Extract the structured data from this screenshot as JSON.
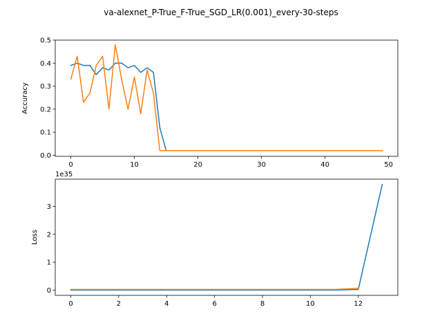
{
  "suptitle": "va-alexnet_P-True_F-True_SGD_LR(0.001)_every-30-steps",
  "chart_data": [
    {
      "type": "line",
      "ylabel": "Accuracy",
      "xlim": [
        -2.45,
        51.45
      ],
      "ylim": [
        -0.0049,
        0.5
      ],
      "xticks": [
        0,
        10,
        20,
        30,
        40,
        50
      ],
      "xtick_labels": [
        "0",
        "10",
        "20",
        "30",
        "40",
        "50"
      ],
      "yticks": [
        0.0,
        0.1,
        0.2,
        0.3,
        0.4,
        0.5
      ],
      "ytick_labels": [
        "0.0",
        "0.1",
        "0.2",
        "0.3",
        "0.4",
        "0.5"
      ],
      "series": [
        {
          "color": "#1f77b4",
          "x": [
            0,
            1,
            2,
            3,
            4,
            5,
            6,
            7,
            8,
            9,
            10,
            11,
            12,
            13,
            14,
            15
          ],
          "values": [
            0.39,
            0.4,
            0.39,
            0.39,
            0.35,
            0.38,
            0.37,
            0.4,
            0.4,
            0.38,
            0.39,
            0.36,
            0.38,
            0.36,
            0.12,
            0.02
          ]
        },
        {
          "color": "#ff7f0e",
          "x": [
            0,
            1,
            2,
            3,
            4,
            5,
            6,
            7,
            8,
            9,
            10,
            11,
            12,
            13,
            14,
            15,
            16,
            17,
            18,
            19,
            20,
            21,
            22,
            23,
            24,
            25,
            26,
            27,
            28,
            29,
            30,
            31,
            32,
            33,
            34,
            35,
            36,
            37,
            38,
            39,
            40,
            41,
            42,
            43,
            44,
            45,
            46,
            47,
            48,
            49
          ],
          "values": [
            0.33,
            0.43,
            0.23,
            0.27,
            0.39,
            0.43,
            0.2,
            0.48,
            0.33,
            0.2,
            0.34,
            0.18,
            0.37,
            0.27,
            0.02,
            0.02,
            0.02,
            0.02,
            0.02,
            0.02,
            0.02,
            0.02,
            0.02,
            0.02,
            0.02,
            0.02,
            0.02,
            0.02,
            0.02,
            0.02,
            0.02,
            0.02,
            0.02,
            0.02,
            0.02,
            0.02,
            0.02,
            0.02,
            0.02,
            0.02,
            0.02,
            0.02,
            0.02,
            0.02,
            0.02,
            0.02,
            0.02,
            0.02,
            0.02,
            0.02
          ]
        }
      ]
    },
    {
      "type": "line",
      "ylabel": "Loss",
      "offset_label": "1e35",
      "xlim": [
        -0.65,
        13.65
      ],
      "ylim": [
        -0.19,
        3.98
      ],
      "xticks": [
        0,
        2,
        4,
        6,
        8,
        10,
        12
      ],
      "xtick_labels": [
        "0",
        "2",
        "4",
        "6",
        "8",
        "10",
        "12"
      ],
      "yticks": [
        0,
        1,
        2,
        3
      ],
      "ytick_labels": [
        "0",
        "1",
        "2",
        "3"
      ],
      "series": [
        {
          "color": "#1f77b4",
          "x": [
            0,
            1,
            2,
            3,
            4,
            5,
            6,
            7,
            8,
            9,
            10,
            11,
            12,
            13
          ],
          "values": [
            0,
            0,
            0,
            0,
            0,
            0,
            0,
            0,
            0,
            0,
            0,
            0,
            0.02,
            3.79
          ]
        },
        {
          "color": "#ff7f0e",
          "x": [
            0,
            1,
            2,
            3,
            4,
            5,
            6,
            7,
            8,
            9,
            10,
            11,
            12
          ],
          "values": [
            0.02,
            0.02,
            0.02,
            0.02,
            0.02,
            0.02,
            0.02,
            0.02,
            0.02,
            0.02,
            0.02,
            0.02,
            0.06
          ]
        }
      ]
    }
  ]
}
